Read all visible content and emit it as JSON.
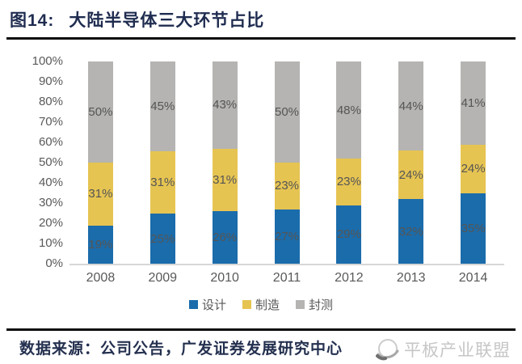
{
  "figure": {
    "label": "图14:",
    "title": "大陆半导体三大环节占比"
  },
  "chart_data": {
    "type": "bar",
    "stacked": true,
    "percent_stacked": true,
    "title": "大陆半导体三大环节占比",
    "categories": [
      "2008",
      "2009",
      "2010",
      "2011",
      "2012",
      "2013",
      "2014"
    ],
    "series": [
      {
        "name": "设计",
        "color": "#1b6cab",
        "values": [
          19,
          25,
          26,
          27,
          29,
          32,
          35
        ]
      },
      {
        "name": "制造",
        "color": "#e6c452",
        "values": [
          31,
          31,
          31,
          23,
          23,
          24,
          24
        ]
      },
      {
        "name": "封测",
        "color": "#b5b4b2",
        "values": [
          50,
          45,
          43,
          50,
          48,
          44,
          41
        ]
      }
    ],
    "data_labels": [
      "19%",
      "25%",
      "26%",
      "27%",
      "29%",
      "32%",
      "35%",
      "31%",
      "31%",
      "31%",
      "23%",
      "23%",
      "24%",
      "24%",
      "50%",
      "45%",
      "43%",
      "50%",
      "48%",
      "44%",
      "41%"
    ],
    "yticks": [
      "100%",
      "90%",
      "80%",
      "70%",
      "60%",
      "50%",
      "40%",
      "30%",
      "20%",
      "10%",
      "0%"
    ],
    "ylim": [
      0,
      100
    ],
    "xlabel": "",
    "ylabel": "",
    "grid": false,
    "legend_position": "bottom"
  },
  "footer": {
    "source": "数据来源：公司公告，广发证券发展研究中心"
  },
  "watermark": {
    "text": "平板产业联盟"
  },
  "colors": {
    "title_text": "#1f2c50",
    "rule": "#0c0c0c",
    "axis_text": "#595959",
    "data_label_text": "#555555",
    "baseline": "#d7d7d7",
    "watermark": "#c6c6c6",
    "background": "#ffffff"
  }
}
